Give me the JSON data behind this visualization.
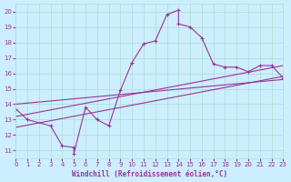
{
  "xlabel": "Windchill (Refroidissement éolien,°C)",
  "bg_color": "#cceeff",
  "line_color": "#993399",
  "grid_color": "#aaddcc",
  "xlim": [
    0,
    23
  ],
  "ylim": [
    10.5,
    20.5
  ],
  "xticks": [
    0,
    1,
    2,
    3,
    4,
    5,
    6,
    7,
    8,
    9,
    10,
    11,
    12,
    13,
    14,
    15,
    16,
    17,
    18,
    19,
    20,
    21,
    22,
    23
  ],
  "yticks": [
    11,
    12,
    13,
    14,
    15,
    16,
    17,
    18,
    19,
    20
  ],
  "line1_x": [
    0,
    1,
    3,
    4,
    5,
    5,
    6,
    7,
    8,
    9,
    10,
    11,
    12,
    13,
    14,
    14,
    15,
    16,
    17,
    18,
    19,
    20,
    21,
    22,
    23
  ],
  "line1_y": [
    13.7,
    13.0,
    12.6,
    11.3,
    11.2,
    10.8,
    13.8,
    13.0,
    12.6,
    14.9,
    16.7,
    17.9,
    18.1,
    19.8,
    20.1,
    19.2,
    19.0,
    18.3,
    16.6,
    16.4,
    16.4,
    16.1,
    16.5,
    16.5,
    15.7
  ],
  "line2_x": [
    0,
    23
  ],
  "line2_y": [
    12.5,
    15.8
  ],
  "line3_x": [
    0,
    23
  ],
  "line3_y": [
    13.2,
    16.5
  ],
  "line4_x": [
    0,
    23
  ],
  "line4_y": [
    14.0,
    15.6
  ]
}
